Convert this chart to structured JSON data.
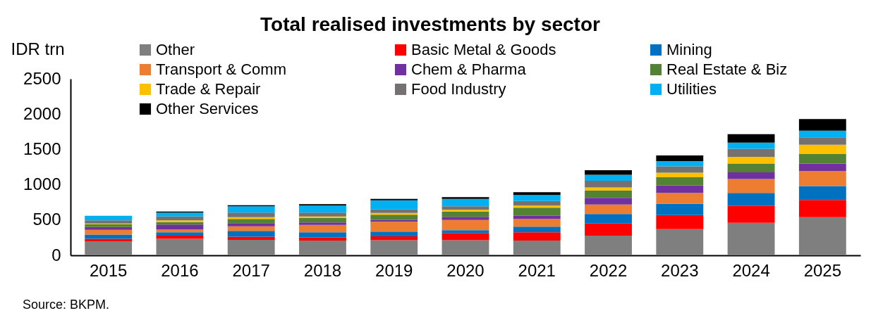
{
  "chart_data": {
    "type": "bar",
    "title": "Total realised investments by sector",
    "ylabel": "IDR trn",
    "categories": [
      "2015",
      "2016",
      "2017",
      "2018",
      "2019",
      "2020",
      "2021",
      "2022",
      "2023",
      "2024",
      "2025"
    ],
    "stacked": true,
    "ylim": [
      0,
      2500
    ],
    "yticks": [
      0,
      500,
      1000,
      1500,
      2000,
      2500
    ],
    "grid": false,
    "legend": "top",
    "series": [
      {
        "name": "Other",
        "color": "#7f7f7f",
        "values": [
          200,
          235,
          220,
          210,
          215,
          215,
          210,
          280,
          370,
          460,
          540
        ]
      },
      {
        "name": "Basic Metal & Goods",
        "color": "#ff0000",
        "values": [
          35,
          45,
          45,
          45,
          55,
          100,
          115,
          170,
          200,
          240,
          245
        ]
      },
      {
        "name": "Mining",
        "color": "#0070c0",
        "values": [
          60,
          45,
          80,
          70,
          65,
          40,
          80,
          135,
          160,
          185,
          195
        ]
      },
      {
        "name": "Transport & Comm",
        "color": "#ed7d31",
        "values": [
          65,
          40,
          65,
          105,
          140,
          145,
          110,
          135,
          155,
          195,
          215
        ]
      },
      {
        "name": "Chem & Pharma",
        "color": "#7030a0",
        "values": [
          40,
          70,
          45,
          35,
          25,
          45,
          45,
          95,
          105,
          95,
          105
        ]
      },
      {
        "name": "Real Estate & Biz",
        "color": "#548235",
        "values": [
          40,
          35,
          60,
          65,
          75,
          75,
          115,
          105,
          115,
          125,
          135
        ]
      },
      {
        "name": "Trade & Repair",
        "color": "#ffc000",
        "values": [
          10,
          25,
          25,
          20,
          25,
          25,
          30,
          40,
          65,
          95,
          130
        ]
      },
      {
        "name": "Food Industry",
        "color": "#767171",
        "values": [
          45,
          55,
          65,
          55,
          50,
          50,
          65,
          95,
          90,
          115,
          105
        ]
      },
      {
        "name": "Utilities",
        "color": "#00b0f0",
        "values": [
          65,
          55,
          90,
          100,
          130,
          105,
          85,
          85,
          75,
          85,
          95
        ]
      },
      {
        "name": "Other Services",
        "color": "#000000",
        "values": [
          null,
          15,
          15,
          20,
          20,
          25,
          40,
          65,
          80,
          120,
          165
        ]
      }
    ],
    "annotations": [
      "Source: BKPM."
    ]
  }
}
